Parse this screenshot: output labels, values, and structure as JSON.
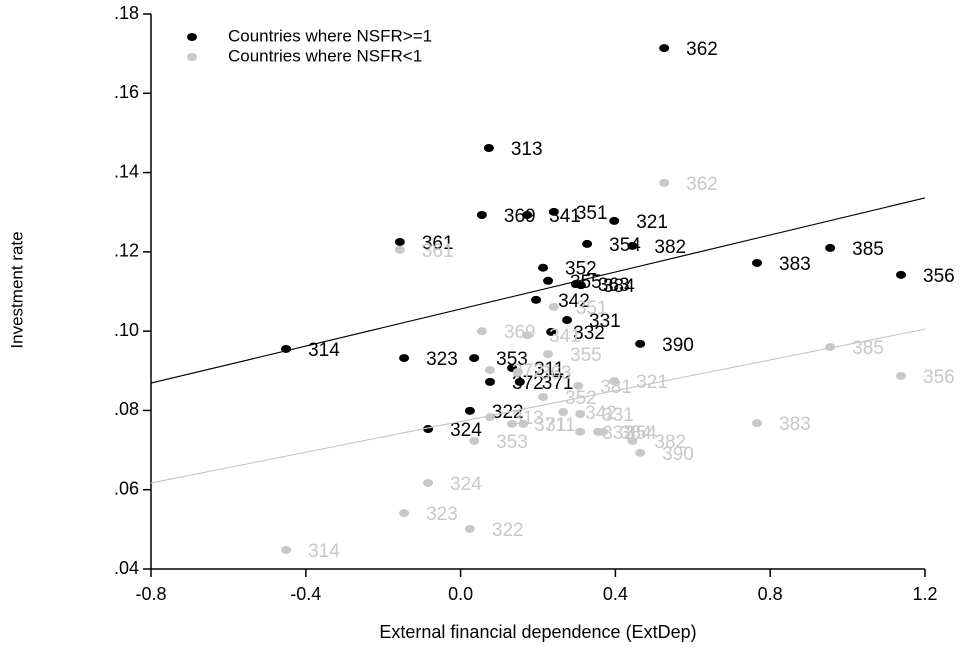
{
  "chart_data": {
    "type": "scatter",
    "x_label": "External financial dependence (ExtDep)",
    "y_label": "Investment rate",
    "xlim": [
      -0.8,
      1.2
    ],
    "ylim": [
      0.04,
      0.18
    ],
    "xticks": [
      {
        "value": -0.8,
        "label": "-0.8"
      },
      {
        "value": -0.4,
        "label": "-0.4"
      },
      {
        "value": 0,
        "label": "0.0"
      },
      {
        "value": 0.4,
        "label": "0.4"
      },
      {
        "value": 0.8,
        "label": "0.8"
      },
      {
        "value": 1.2,
        "label": "1.2"
      }
    ],
    "yticks": [
      {
        "value": 0.04,
        "label": ".04"
      },
      {
        "value": 0.06,
        "label": ".06"
      },
      {
        "value": 0.08,
        "label": ".08"
      },
      {
        "value": 0.1,
        "label": ".10"
      },
      {
        "value": 0.12,
        "label": ".12"
      },
      {
        "value": 0.14,
        "label": ".14"
      },
      {
        "value": 0.16,
        "label": ".16"
      },
      {
        "value": 0.18,
        "label": ".18"
      }
    ],
    "legend": "top-left",
    "series": [
      {
        "name": "Countries where NSFR>=1",
        "color": "#000000",
        "labels": [
          "362",
          "313",
          "351",
          "321",
          "369",
          "341",
          "361",
          "354",
          "382",
          "385",
          "383",
          "356",
          "352",
          "355",
          "363",
          "384",
          "342",
          "331",
          "332",
          "390",
          "314",
          "323",
          "353",
          "311",
          "372",
          "371",
          "322",
          "324"
        ],
        "x": [
          0.526,
          0.073,
          0.241,
          0.397,
          0.055,
          0.172,
          -0.157,
          0.327,
          0.444,
          0.955,
          0.766,
          1.138,
          0.213,
          0.226,
          0.298,
          0.311,
          0.195,
          0.275,
          0.234,
          0.464,
          -0.451,
          -0.146,
          0.035,
          0.133,
          0.076,
          0.153,
          0.024,
          -0.084
        ],
        "values": [
          0.1714,
          0.1462,
          0.1301,
          0.1278,
          0.1293,
          0.1293,
          0.1225,
          0.122,
          0.1215,
          0.121,
          0.1172,
          0.1142,
          0.116,
          0.1127,
          0.1119,
          0.1116,
          0.1079,
          0.1028,
          0.0998,
          0.0968,
          0.0955,
          0.0932,
          0.0932,
          0.0907,
          0.0872,
          0.0872,
          0.0799,
          0.0753
        ],
        "fit": {
          "x": [
            -0.8,
            1.2
          ],
          "y": [
            0.0869,
            0.1336
          ]
        }
      },
      {
        "name": "Countries where NSFR<1",
        "color": "#c8c8c8",
        "labels": [
          "362",
          "361",
          "385",
          "356",
          "321",
          "383",
          "390",
          "382",
          "354",
          "384",
          "332",
          "353",
          "331",
          "342",
          "369",
          "341",
          "351",
          "355",
          "352",
          "381",
          "311",
          "371",
          "372",
          "363",
          "313",
          "322",
          "323",
          "324",
          "314"
        ],
        "x": [
          0.526,
          -0.157,
          0.955,
          1.138,
          0.397,
          0.766,
          0.464,
          0.444,
          0.368,
          0.355,
          0.309,
          0.035,
          0.309,
          0.265,
          0.055,
          0.172,
          0.241,
          0.226,
          0.213,
          0.304,
          0.162,
          0.133,
          0.076,
          0.148,
          0.076,
          0.024,
          -0.146,
          -0.084,
          -0.451
        ],
        "values": [
          0.1374,
          0.1205,
          0.096,
          0.0887,
          0.0874,
          0.0768,
          0.0693,
          0.0723,
          0.0746,
          0.0746,
          0.0746,
          0.0723,
          0.0791,
          0.0796,
          0.1,
          0.099,
          0.1061,
          0.0942,
          0.0834,
          0.0862,
          0.0766,
          0.0766,
          0.0902,
          0.0897,
          0.0783,
          0.0501,
          0.0541,
          0.0617,
          0.0448
        ],
        "fit": {
          "x": [
            -0.8,
            1.2
          ],
          "y": [
            0.0617,
            0.1005
          ]
        }
      }
    ]
  }
}
